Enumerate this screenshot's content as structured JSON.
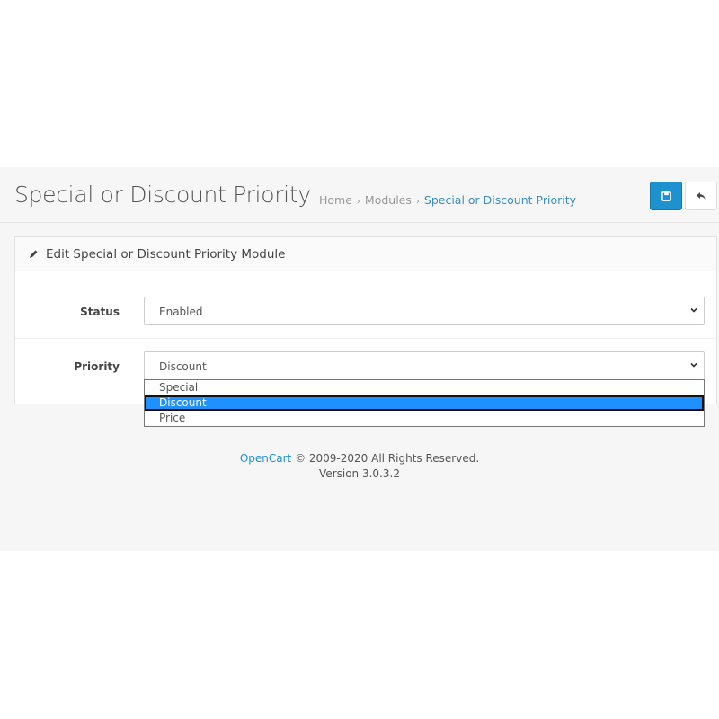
{
  "header": {
    "title": "Special or Discount Priority",
    "breadcrumb": [
      "Home",
      "Modules",
      "Special or Discount Priority"
    ],
    "save_icon": "floppy-disk-icon",
    "back_icon": "reply-icon"
  },
  "panel": {
    "heading": "Edit Special or Discount Priority Module",
    "heading_icon": "pencil-icon"
  },
  "form": {
    "status": {
      "label": "Status",
      "value": "Enabled"
    },
    "priority": {
      "label": "Priority",
      "value": "Discount",
      "options": [
        "Special",
        "Discount",
        "Price"
      ],
      "highlighted": "Discount"
    }
  },
  "footer": {
    "brand": "OpenCart",
    "rights": " © 2009-2020 All Rights Reserved.",
    "version": "Version 3.0.3.2"
  },
  "colors": {
    "primary": "#1e91cf",
    "highlight": "#1e90ff"
  }
}
